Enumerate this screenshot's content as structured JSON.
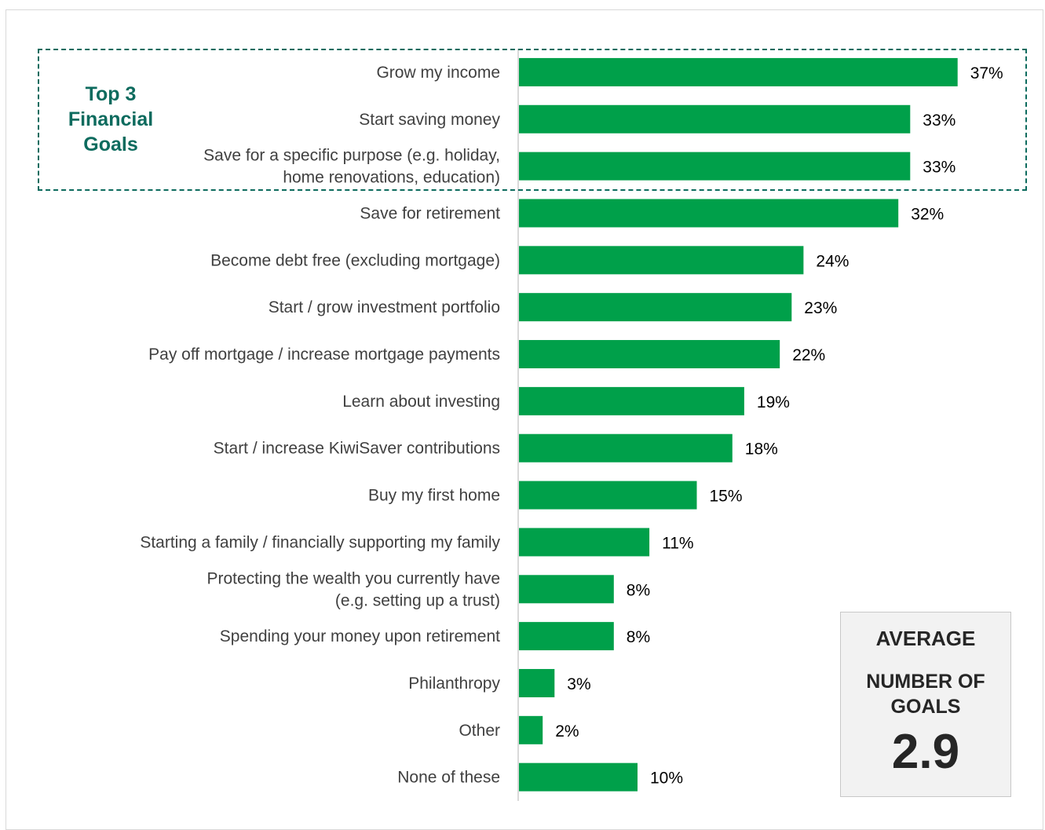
{
  "highlight": {
    "label": "Top 3 Financial Goals",
    "color": "#0d6b5e",
    "covers_top_n": 3
  },
  "average_box": {
    "line1": "AVERAGE",
    "line2": "NUMBER OF GOALS",
    "value": "2.9"
  },
  "chart_data": {
    "type": "bar",
    "orientation": "horizontal",
    "bar_color": "#00a04a",
    "axis_color": "#d9d9d9",
    "value_format": "percent",
    "grid": false,
    "xlim": [
      0,
      40
    ],
    "categories": [
      [
        "Grow my income"
      ],
      [
        "Start saving money"
      ],
      [
        "Save for a specific purpose (e.g. holiday,",
        "home renovations, education)"
      ],
      [
        "Save for retirement"
      ],
      [
        "Become debt free (excluding mortgage)"
      ],
      [
        "Start / grow investment portfolio"
      ],
      [
        "Pay off mortgage / increase mortgage payments"
      ],
      [
        "Learn about investing"
      ],
      [
        "Start / increase KiwiSaver contributions"
      ],
      [
        "Buy my first home"
      ],
      [
        "Starting a family / financially supporting my family"
      ],
      [
        "Protecting the wealth you currently have",
        "(e.g. setting up a trust)"
      ],
      [
        "Spending your money upon retirement"
      ],
      [
        "Philanthropy"
      ],
      [
        "Other"
      ],
      [
        "None of these"
      ]
    ],
    "values": [
      37,
      33,
      33,
      32,
      24,
      23,
      22,
      19,
      18,
      15,
      11,
      8,
      8,
      3,
      2,
      10
    ],
    "value_labels": [
      "37%",
      "33%",
      "33%",
      "32%",
      "24%",
      "23%",
      "22%",
      "19%",
      "18%",
      "15%",
      "11%",
      "8%",
      "8%",
      "3%",
      "2%",
      "10%"
    ]
  }
}
